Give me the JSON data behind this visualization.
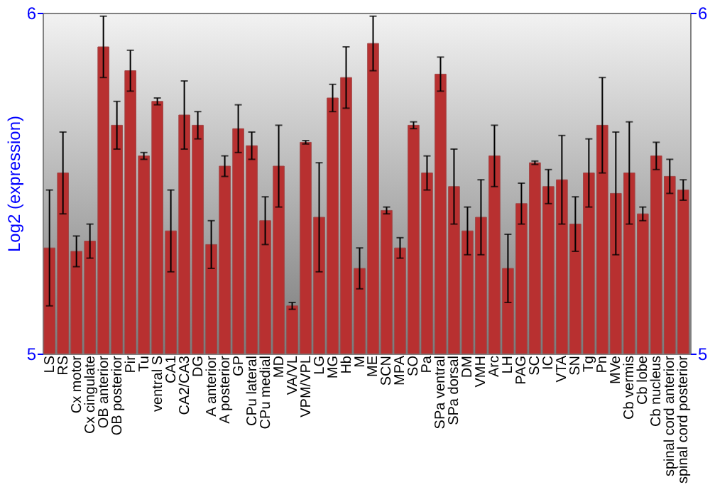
{
  "chart_data": {
    "type": "bar",
    "ylabel": "Log2 (expression)",
    "categories": [
      "LS",
      "RS",
      "Cx motor",
      "Cx cingulate",
      "OB anterior",
      "OB posterior",
      "Pir",
      "Tu",
      "ventral S",
      "CA1",
      "CA2/CA3",
      "DG",
      "A anterior",
      "A posterior",
      "GP",
      "CPu lateral",
      "CPu medial",
      "MD",
      "VA/VL",
      "VPM/VPL",
      "LG",
      "MG",
      "Hb",
      "M",
      "ME",
      "SCN",
      "MPA",
      "SO",
      "Pa",
      "SPa ventral",
      "SPa dorsal",
      "DM",
      "VMH",
      "Arc",
      "LH",
      "PAG",
      "SC",
      "IC",
      "VTA",
      "SN",
      "Tg",
      "Pn",
      "MVe",
      "Cb vermis",
      "Cb lobe",
      "Cb nucleus",
      "spinal cord anterior",
      "spinal cord posterior"
    ],
    "values": [
      5.31,
      5.53,
      5.3,
      5.33,
      5.9,
      5.67,
      5.83,
      5.58,
      5.74,
      5.36,
      5.7,
      5.67,
      5.32,
      5.55,
      5.66,
      5.61,
      5.39,
      5.55,
      5.14,
      5.62,
      5.4,
      5.75,
      5.81,
      5.25,
      5.91,
      5.42,
      5.31,
      5.67,
      5.53,
      5.82,
      5.49,
      5.36,
      5.4,
      5.58,
      5.25,
      5.44,
      5.56,
      5.49,
      5.51,
      5.38,
      5.53,
      5.67,
      5.47,
      5.53,
      5.41,
      5.58,
      5.52,
      5.48
    ],
    "errors": [
      0.17,
      0.12,
      0.045,
      0.05,
      0.09,
      0.07,
      0.06,
      0.01,
      0.01,
      0.12,
      0.1,
      0.04,
      0.07,
      0.03,
      0.07,
      0.04,
      0.07,
      0.12,
      0.01,
      0.005,
      0.16,
      0.04,
      0.09,
      0.06,
      0.08,
      0.01,
      0.03,
      0.01,
      0.05,
      0.05,
      0.11,
      0.07,
      0.11,
      0.09,
      0.1,
      0.06,
      0.005,
      0.05,
      0.13,
      0.08,
      0.1,
      0.14,
      0.18,
      0.15,
      0.02,
      0.04,
      0.05,
      0.03
    ],
    "color": "#b83030",
    "ylim": [
      5,
      6
    ],
    "yticks": [
      5,
      6
    ],
    "y2lim": [
      5,
      6
    ],
    "y2ticks": [
      5,
      6
    ]
  }
}
